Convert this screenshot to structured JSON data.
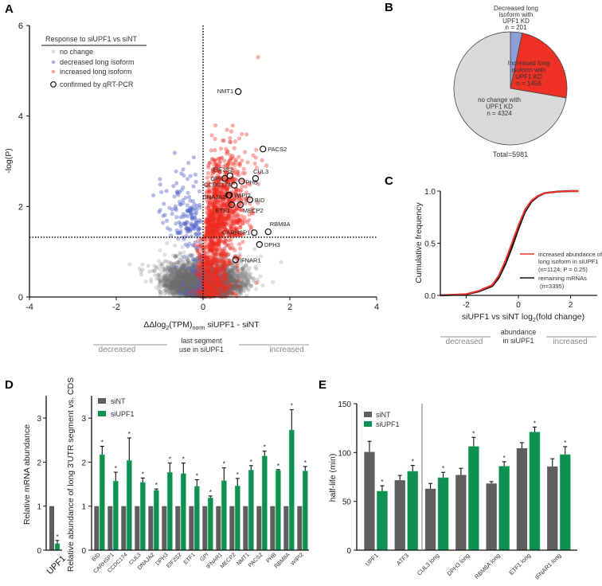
{
  "panel_letters": [
    "A",
    "B",
    "C",
    "D",
    "E"
  ],
  "chart_data": [
    {
      "id": "A",
      "type": "scatter",
      "title": "",
      "xlabel": "ΔΔlog2(TPM)norm siUPF1 - siNT",
      "ylabel": "-log(P)",
      "xlim": [
        -4,
        4
      ],
      "ylim": [
        0,
        6
      ],
      "xticks": [
        "-4",
        "-2",
        "0",
        "2",
        "4"
      ],
      "yticks": [
        "0",
        "2",
        "4",
        "6"
      ],
      "significance_threshold": 1.3,
      "legend": {
        "title": "Response to siUPF1 vs siNT",
        "items": [
          "no change",
          "decreased long isoform",
          "increased long isoform",
          "confirmed by qRT-PCR"
        ],
        "placement": "top-left"
      },
      "colors": {
        "no_change": "#9a9a9a",
        "decreased": "#5a6cc8",
        "increased": "#f0302a"
      },
      "category_counts": {
        "no_change": 4324,
        "decreased": 201,
        "increased": 1456
      },
      "confirmed_genes": [
        {
          "gene": "NMT1",
          "x": 0.81,
          "y": 4.54
        },
        {
          "gene": "PACS2",
          "x": 1.38,
          "y": 3.27
        },
        {
          "gene": "CUL3",
          "x": 1.21,
          "y": 2.62
        },
        {
          "gene": "EIF2S2",
          "x": 0.62,
          "y": 2.68
        },
        {
          "gene": "GPI",
          "x": 0.5,
          "y": 2.62
        },
        {
          "gene": "PHB",
          "x": 0.89,
          "y": 2.56
        },
        {
          "gene": "CCDC174",
          "x": 0.72,
          "y": 2.47
        },
        {
          "gene": "DNAJA2",
          "x": 0.59,
          "y": 2.25
        },
        {
          "gene": "WIPI2",
          "x": 0.61,
          "y": 2.25
        },
        {
          "gene": "BID",
          "x": 1.08,
          "y": 2.15
        },
        {
          "gene": "ETF1",
          "x": 0.66,
          "y": 2.04
        },
        {
          "gene": "MECP2",
          "x": 0.86,
          "y": 2.04
        },
        {
          "gene": "RBM8A",
          "x": 1.5,
          "y": 1.44
        },
        {
          "gene": "CARHSP1",
          "x": 1.18,
          "y": 1.42
        },
        {
          "gene": "DPH3",
          "x": 1.3,
          "y": 1.16
        },
        {
          "gene": "IFNAR1",
          "x": 0.75,
          "y": 0.82
        }
      ],
      "annotation": {
        "left": "decreased",
        "center_1": "last segment",
        "center_2": "use in siUPF1",
        "right": "increased"
      }
    },
    {
      "id": "B",
      "type": "pie",
      "slices": [
        {
          "label_lines": [
            "Decreased long",
            "isoform with",
            "UPF1 KD",
            "n = 201"
          ],
          "value": 201,
          "color": "#8d9fd6"
        },
        {
          "label_lines": [
            "Increased long",
            "isoform with",
            "UPF1 KD",
            "n = 1456"
          ],
          "value": 1456,
          "color": "#ee3124"
        },
        {
          "label_lines": [
            "no change with",
            "UPF1 KD",
            "n = 4324"
          ],
          "value": 4324,
          "color": "#d9d9d9"
        }
      ],
      "total_label": "Total=5981"
    },
    {
      "id": "C",
      "type": "line",
      "xlabel": "siUPF1 vs siNT log2(fold change)",
      "ylabel": "Cumulative frequency",
      "xlim": [
        -3,
        3
      ],
      "ylim": [
        0,
        1
      ],
      "xticks": [
        "-2",
        "0",
        "2"
      ],
      "yticks": [
        "0.0",
        "0.5",
        "1.0"
      ],
      "x": [
        -3,
        -2.5,
        -2,
        -1.5,
        -1,
        -0.75,
        -0.5,
        -0.25,
        0,
        0.25,
        0.5,
        0.75,
        1,
        1.5,
        2,
        2.3
      ],
      "series": [
        {
          "name": "remaining mRNAs",
          "name_line2": "(n=3395)",
          "color": "#111111",
          "values": [
            0,
            0.005,
            0.01,
            0.04,
            0.09,
            0.17,
            0.3,
            0.46,
            0.64,
            0.8,
            0.9,
            0.95,
            0.98,
            0.995,
            1,
            1
          ]
        },
        {
          "name": "increased abundance of",
          "name_line2": "long isoform in siUPF1",
          "name_line3": "(n=1124; P = 0.25)",
          "color": "#f0302a",
          "values": [
            0,
            0.005,
            0.012,
            0.045,
            0.1,
            0.19,
            0.33,
            0.5,
            0.67,
            0.82,
            0.91,
            0.955,
            0.98,
            0.995,
            1,
            1
          ]
        }
      ],
      "annotation": {
        "left": "decreased",
        "center_1": "abundance",
        "center_2": "in siUPF1",
        "right": "increased"
      },
      "legend_placement": "bottom-right"
    },
    {
      "id": "D",
      "type": "bar",
      "ylabel_left": "Relative mRNA abundance",
      "ylabel_main": "Relative abundance of long 3'UTR segment vs. CDS",
      "ylim": [
        0,
        3.4
      ],
      "yticks": [
        "0",
        "1",
        "2",
        "3"
      ],
      "legend": [
        "siNT",
        "siUPF1"
      ],
      "colors": [
        "#5e5e5e",
        "#0e9150"
      ],
      "left_panel": {
        "categories": [
          "UPF1"
        ],
        "siNT": [
          1
        ],
        "siUPF1": [
          0.15
        ],
        "siUPF1_err": [
          0.07
        ],
        "significant": [
          true
        ]
      },
      "categories": [
        "BID",
        "CARHSP1",
        "CCDC174",
        "CUL3",
        "DNAJA2",
        "DPH3",
        "EIF2S2",
        "ETF1",
        "GPI",
        "IFNAR1",
        "MECP2",
        "NMT1",
        "PACS2",
        "PHB",
        "RBM8A",
        "WIPI2"
      ],
      "series": [
        {
          "name": "siNT",
          "values": [
            1,
            1,
            1,
            1,
            1,
            1,
            1,
            1,
            1,
            1,
            1,
            1,
            1,
            1,
            1,
            1
          ]
        },
        {
          "name": "siUPF1",
          "values": [
            2.17,
            1.57,
            2.04,
            1.54,
            1.36,
            1.77,
            1.74,
            1.45,
            1.19,
            1.58,
            1.46,
            1.82,
            2.14,
            1.81,
            2.73,
            1.8
          ],
          "err": [
            0.19,
            0.2,
            0.51,
            0.1,
            0.03,
            0.21,
            0.24,
            0.15,
            0.04,
            0.29,
            0.17,
            0.1,
            0.11,
            0.02,
            0.46,
            0.1
          ]
        }
      ],
      "star_label": "*"
    },
    {
      "id": "E",
      "type": "bar",
      "ylabel": "half-life (min)",
      "ylim": [
        0,
        150
      ],
      "yticks": [
        "0",
        "50",
        "100",
        "150"
      ],
      "legend": [
        "siNT",
        "siUPF1"
      ],
      "colors": [
        "#5e5e5e",
        "#0e9150"
      ],
      "categories": [
        "UPF1",
        "ATF3",
        "CUL3 long",
        "DPH3 long",
        "RBM8A long",
        "ETF1 long",
        "IFNAR1 long"
      ],
      "series": [
        {
          "name": "siNT",
          "values": [
            100.6,
            71.6,
            62.9,
            77.0,
            68.3,
            104.4,
            85.7
          ],
          "err": [
            10.9,
            4.9,
            5.4,
            6.8,
            1.9,
            5.7,
            7.9
          ]
        },
        {
          "name": "siUPF1",
          "values": [
            60.5,
            80.8,
            74.3,
            106.3,
            86.0,
            121.0,
            97.9
          ],
          "err": [
            5.4,
            6.0,
            5.4,
            9.2,
            4.6,
            5.1,
            8.1
          ]
        }
      ],
      "star_label": "*"
    }
  ]
}
